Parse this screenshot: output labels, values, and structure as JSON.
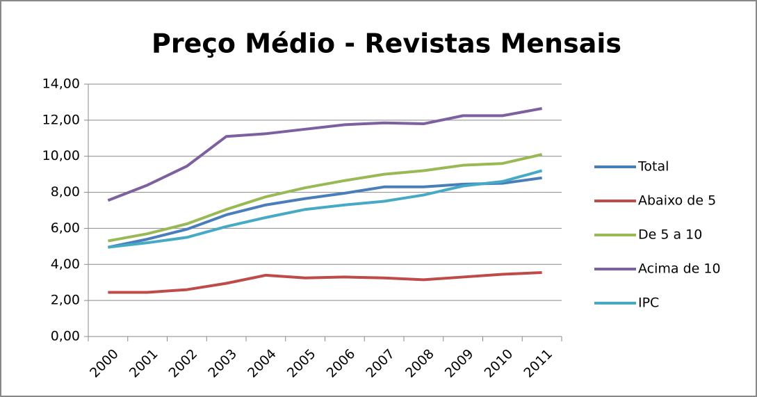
{
  "chart_data": {
    "type": "line",
    "title": "Preço Médio - Revistas Mensais",
    "categories": [
      "2000",
      "2001",
      "2002",
      "2003",
      "2004",
      "2005",
      "2006",
      "2007",
      "2008",
      "2009",
      "2010",
      "2011"
    ],
    "series": [
      {
        "name": "Total",
        "color": "#4a7ebb",
        "values": [
          4.95,
          5.4,
          5.95,
          6.75,
          7.3,
          7.65,
          7.95,
          8.3,
          8.3,
          8.45,
          8.5,
          8.8
        ]
      },
      {
        "name": "Abaixo de 5",
        "color": "#be4b48",
        "values": [
          2.45,
          2.45,
          2.6,
          2.95,
          3.4,
          3.25,
          3.3,
          3.25,
          3.15,
          3.3,
          3.45,
          3.55
        ]
      },
      {
        "name": "De 5 a 10",
        "color": "#98b954",
        "values": [
          5.3,
          5.7,
          6.25,
          7.05,
          7.75,
          8.25,
          8.65,
          9.0,
          9.2,
          9.5,
          9.6,
          10.1
        ]
      },
      {
        "name": "Acima de 10",
        "color": "#7d60a0",
        "values": [
          7.55,
          8.4,
          9.45,
          11.1,
          11.25,
          11.5,
          11.75,
          11.85,
          11.8,
          12.25,
          12.25,
          12.65
        ]
      },
      {
        "name": "IPC",
        "color": "#46aac5",
        "values": [
          4.95,
          5.2,
          5.5,
          6.1,
          6.6,
          7.05,
          7.3,
          7.5,
          7.85,
          8.35,
          8.6,
          9.2
        ]
      }
    ],
    "ylim": [
      0,
      14
    ],
    "yticks": [
      {
        "value": 0,
        "label": "0,00"
      },
      {
        "value": 2,
        "label": "2,00"
      },
      {
        "value": 4,
        "label": "4,00"
      },
      {
        "value": 6,
        "label": "6,00"
      },
      {
        "value": 8,
        "label": "8,00"
      },
      {
        "value": 10,
        "label": "10,00"
      },
      {
        "value": 12,
        "label": "12,00"
      },
      {
        "value": 14,
        "label": "14,00"
      }
    ],
    "grid": true,
    "legend": "right"
  }
}
